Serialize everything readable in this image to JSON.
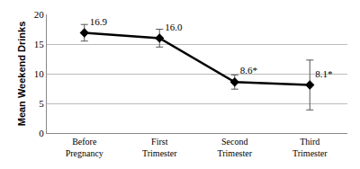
{
  "chart_data": {
    "type": "line",
    "y_label": "Mean Weekend Drinks",
    "categories": [
      "Before Pregnancy",
      "First Trimester",
      "Second Trimester",
      "Third Trimester"
    ],
    "values": [
      16.9,
      16.0,
      8.6,
      8.1
    ],
    "value_labels": [
      "16.9",
      "16.0",
      "8.6*",
      "8.1*"
    ],
    "errors": [
      1.4,
      1.5,
      1.2,
      4.2
    ],
    "color": "#000000",
    "marker": "diamond",
    "line_style": "solid",
    "data_labels": true,
    "ylim": [
      0,
      20
    ],
    "yticks": [
      0,
      5,
      10,
      15,
      20
    ],
    "grid": true
  }
}
